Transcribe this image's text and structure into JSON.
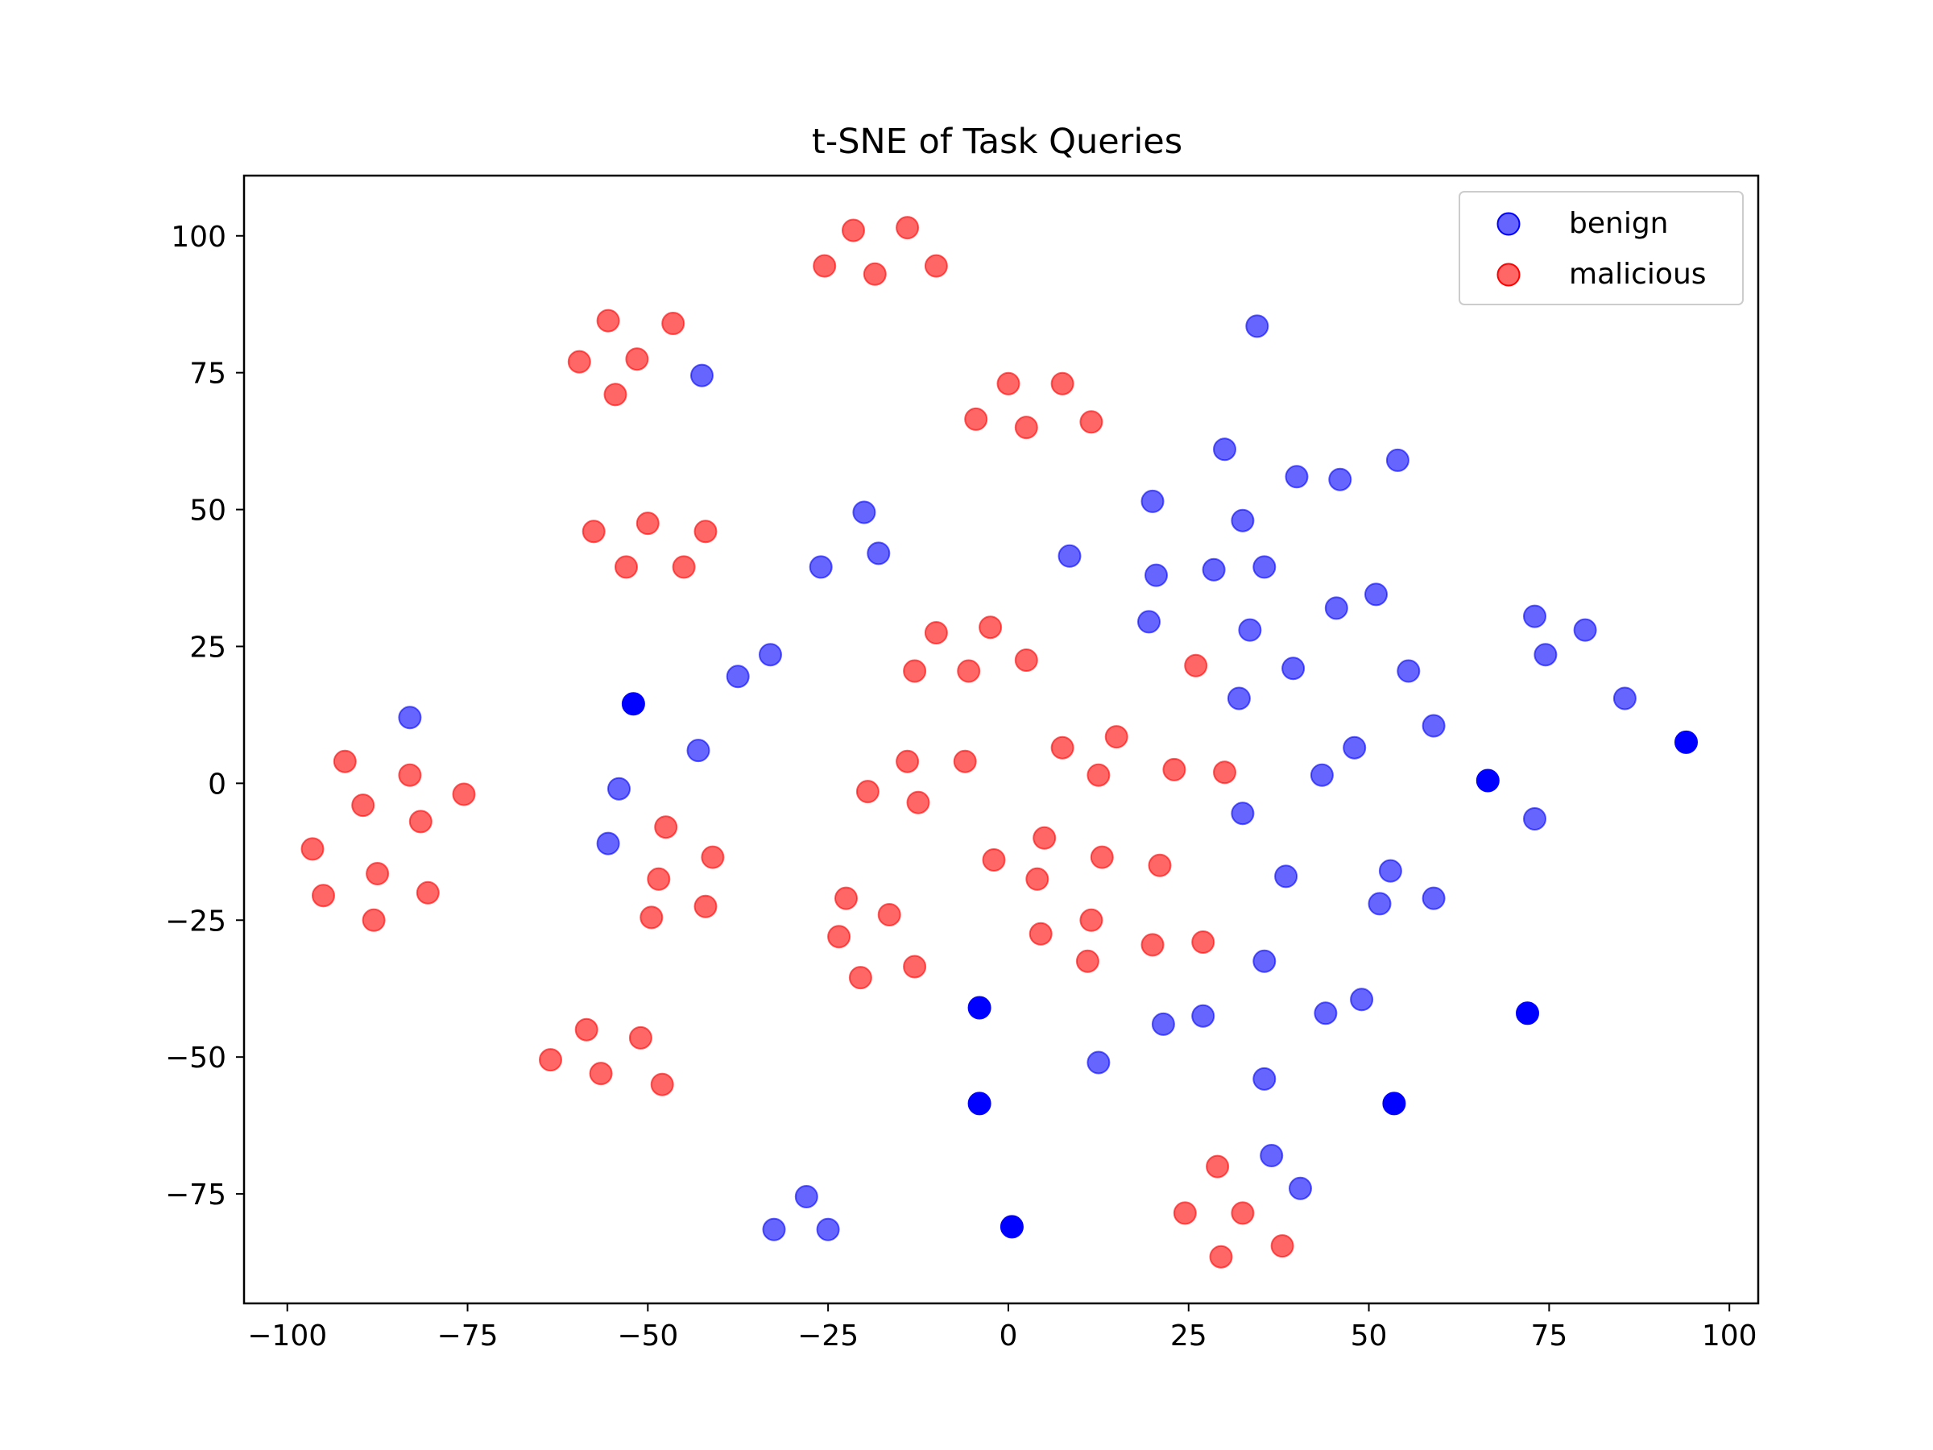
{
  "chart_data": {
    "type": "scatter",
    "title": "t-SNE of Task Queries",
    "xlabel": "",
    "ylabel": "",
    "xlim": [
      -106,
      104
    ],
    "ylim": [
      -95,
      111
    ],
    "xticks": [
      {
        "value": -100,
        "label": "−100"
      },
      {
        "value": -75,
        "label": "−75"
      },
      {
        "value": -50,
        "label": "−50"
      },
      {
        "value": -25,
        "label": "−25"
      },
      {
        "value": 0,
        "label": "0"
      },
      {
        "value": 25,
        "label": "25"
      },
      {
        "value": 50,
        "label": "50"
      },
      {
        "value": 75,
        "label": "75"
      },
      {
        "value": 100,
        "label": "100"
      }
    ],
    "yticks": [
      {
        "value": 100,
        "label": "100"
      },
      {
        "value": 75,
        "label": "75"
      },
      {
        "value": 50,
        "label": "50"
      },
      {
        "value": 25,
        "label": "25"
      },
      {
        "value": 0,
        "label": "0"
      },
      {
        "value": -25,
        "label": "−25"
      },
      {
        "value": -50,
        "label": "−50"
      },
      {
        "value": -75,
        "label": "−75"
      }
    ],
    "grid": false,
    "legend_position": "top-right",
    "series": [
      {
        "name": "benign",
        "color": "#0000ff",
        "opacity": 0.6,
        "points": [
          [
            -83,
            12
          ],
          [
            -42.5,
            74.5
          ],
          [
            -43,
            6
          ],
          [
            -54,
            -1
          ],
          [
            -55.5,
            -11
          ],
          [
            -37.5,
            19.5
          ],
          [
            -33,
            23.5
          ],
          [
            -20,
            49.5
          ],
          [
            -18,
            42
          ],
          [
            -26,
            39.5
          ],
          [
            8.5,
            41.5
          ],
          [
            20,
            51.5
          ],
          [
            20.5,
            38
          ],
          [
            19.5,
            29.5
          ],
          [
            30,
            61
          ],
          [
            32.5,
            48
          ],
          [
            28.5,
            39
          ],
          [
            35.5,
            39.5
          ],
          [
            34.5,
            83.5
          ],
          [
            40,
            56
          ],
          [
            46,
            55.5
          ],
          [
            54,
            59
          ],
          [
            33.5,
            28
          ],
          [
            32,
            15.5
          ],
          [
            39.5,
            21
          ],
          [
            45.5,
            32
          ],
          [
            51,
            34.5
          ],
          [
            55.5,
            20.5
          ],
          [
            48,
            6.5
          ],
          [
            59,
            10.5
          ],
          [
            43.5,
            1.5
          ],
          [
            32.5,
            -5.5
          ],
          [
            73,
            30.5
          ],
          [
            74.5,
            23.5
          ],
          [
            80,
            28
          ],
          [
            85.5,
            15.5
          ],
          [
            73,
            -6.5
          ],
          [
            38.5,
            -17
          ],
          [
            53,
            -16
          ],
          [
            51.5,
            -22
          ],
          [
            59,
            -21
          ],
          [
            35.5,
            -32.5
          ],
          [
            44,
            -42
          ],
          [
            49,
            -39.5
          ],
          [
            21.5,
            -44
          ],
          [
            27,
            -42.5
          ],
          [
            12.5,
            -51
          ],
          [
            35.5,
            -54
          ],
          [
            36.5,
            -68
          ],
          [
            40.5,
            -74
          ],
          [
            -28,
            -75.5
          ],
          [
            -32.5,
            -81.5
          ],
          [
            -25,
            -81.5
          ]
        ]
      },
      {
        "name": "",
        "color": "#0000ff",
        "opacity": 1.0,
        "points": [
          [
            -52,
            14.5
          ],
          [
            66.5,
            0.5
          ],
          [
            94,
            7.5
          ],
          [
            -4,
            -41
          ],
          [
            -4,
            -58.5
          ],
          [
            53.5,
            -58.5
          ],
          [
            72,
            -42
          ],
          [
            0.5,
            -81
          ]
        ]
      },
      {
        "name": "malicious",
        "color": "#ff0000",
        "opacity": 0.6,
        "points": [
          [
            -21.5,
            101
          ],
          [
            -14,
            101.5
          ],
          [
            -25.5,
            94.5
          ],
          [
            -18.5,
            93
          ],
          [
            -10,
            94.5
          ],
          [
            -55.5,
            84.5
          ],
          [
            -46.5,
            84
          ],
          [
            -59.5,
            77
          ],
          [
            -51.5,
            77.5
          ],
          [
            -54.5,
            71
          ],
          [
            0,
            73
          ],
          [
            7.5,
            73
          ],
          [
            -4.5,
            66.5
          ],
          [
            2.5,
            65
          ],
          [
            11.5,
            66
          ],
          [
            -57.5,
            46
          ],
          [
            -50,
            47.5
          ],
          [
            -42,
            46
          ],
          [
            -53,
            39.5
          ],
          [
            -45,
            39.5
          ],
          [
            -10,
            27.5
          ],
          [
            -2.5,
            28.5
          ],
          [
            -13,
            20.5
          ],
          [
            -5.5,
            20.5
          ],
          [
            2.5,
            22.5
          ],
          [
            26,
            21.5
          ],
          [
            -92,
            4
          ],
          [
            -83,
            1.5
          ],
          [
            -75.5,
            -2
          ],
          [
            -89.5,
            -4
          ],
          [
            -81.5,
            -7
          ],
          [
            -96.5,
            -12
          ],
          [
            -87.5,
            -16.5
          ],
          [
            -95,
            -20.5
          ],
          [
            -80.5,
            -20
          ],
          [
            -88,
            -25
          ],
          [
            -14,
            4
          ],
          [
            -6,
            4
          ],
          [
            -19.5,
            -1.5
          ],
          [
            -12.5,
            -3.5
          ],
          [
            7.5,
            6.5
          ],
          [
            15,
            8.5
          ],
          [
            12.5,
            1.5
          ],
          [
            23,
            2.5
          ],
          [
            30,
            2
          ],
          [
            -47.5,
            -8
          ],
          [
            -41,
            -13.5
          ],
          [
            -48.5,
            -17.5
          ],
          [
            -42,
            -22.5
          ],
          [
            -49.5,
            -24.5
          ],
          [
            5,
            -10
          ],
          [
            -2,
            -14
          ],
          [
            13,
            -13.5
          ],
          [
            21,
            -15
          ],
          [
            4,
            -17.5
          ],
          [
            -22.5,
            -21
          ],
          [
            -16.5,
            -24
          ],
          [
            -23.5,
            -28
          ],
          [
            -13,
            -33.5
          ],
          [
            -20.5,
            -35.5
          ],
          [
            4.5,
            -27.5
          ],
          [
            11.5,
            -25
          ],
          [
            20,
            -29.5
          ],
          [
            27,
            -29
          ],
          [
            11,
            -32.5
          ],
          [
            -58.5,
            -45
          ],
          [
            -51,
            -46.5
          ],
          [
            -63.5,
            -50.5
          ],
          [
            -56.5,
            -53
          ],
          [
            -48,
            -55
          ],
          [
            29,
            -70
          ],
          [
            24.5,
            -78.5
          ],
          [
            32.5,
            -78.5
          ],
          [
            29.5,
            -86.5
          ],
          [
            38,
            -84.5
          ]
        ]
      }
    ]
  },
  "legend": [
    {
      "label": "benign",
      "color": "#0000ff"
    },
    {
      "label": "malicious",
      "color": "#ff0000"
    }
  ]
}
